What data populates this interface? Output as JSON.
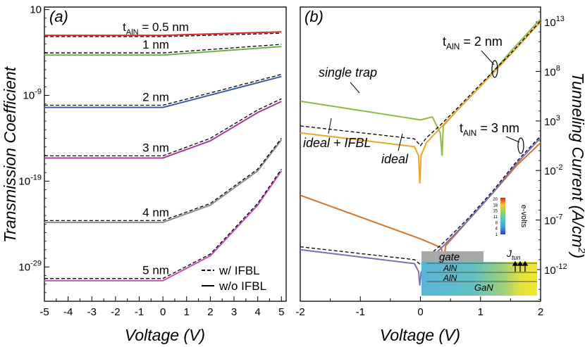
{
  "chart_data": [
    {
      "type": "line",
      "panel_label": "(a)",
      "xlabel": "Voltage (V)",
      "ylabel": "Transmission Coefficient",
      "xlim": [
        -5,
        5.2
      ],
      "ylim_log10": [
        -33,
        1.3
      ],
      "x_ticks": [
        "-5",
        "-4",
        "-3",
        "-2",
        "-1",
        "0",
        "1",
        "2",
        "3",
        "4",
        "5"
      ],
      "y_ticks": [
        {
          "base": "10",
          "exp": "",
          "log10": 1
        },
        {
          "base": "10",
          "exp": "-9",
          "log10": -9
        },
        {
          "base": "10",
          "exp": "-19",
          "log10": -19
        },
        {
          "base": "10",
          "exp": "-29",
          "log10": -29
        }
      ],
      "legend": {
        "placement": "bottom-right",
        "dashed": "w/ IFBL",
        "solid": "w/o IFBL"
      },
      "series": [
        {
          "label_main": "t",
          "label_sub": "AlN",
          "label_rest": " = 0.5 nm",
          "color": "#e8242a",
          "solid": [
            [
              -5,
              -2.0
            ],
            [
              0,
              -2.0
            ],
            [
              5,
              -1.6
            ]
          ],
          "dashed": [
            [
              -5,
              -2.15
            ],
            [
              0,
              -2.15
            ],
            [
              5,
              -1.75
            ]
          ]
        },
        {
          "label": "1 nm",
          "color": "#6ab446",
          "solid": [
            [
              -5,
              -4.3
            ],
            [
              0,
              -4.3
            ],
            [
              5,
              -3.3
            ]
          ],
          "dashed": [
            [
              -5,
              -4.05
            ],
            [
              0,
              -4.05
            ],
            [
              5,
              -3.05
            ]
          ]
        },
        {
          "label": "2 nm",
          "color": "#3b5ca8",
          "solid": [
            [
              -5,
              -10.4
            ],
            [
              0,
              -10.4
            ],
            [
              5,
              -6.8
            ]
          ],
          "dashed": [
            [
              -5,
              -10.15
            ],
            [
              0,
              -10.15
            ],
            [
              5,
              -6.55
            ]
          ]
        },
        {
          "label": "3 nm",
          "color": "#a23d97",
          "solid": [
            [
              -5,
              -16.3
            ],
            [
              0,
              -16.3
            ],
            [
              2,
              -14.3
            ],
            [
              4,
              -11.0
            ],
            [
              5,
              -9.7
            ]
          ],
          "dashed": [
            [
              -5,
              -16.05
            ],
            [
              0,
              -16.05
            ],
            [
              2,
              -14.0
            ],
            [
              4,
              -10.7
            ],
            [
              5,
              -9.4
            ]
          ]
        },
        {
          "label": "4 nm",
          "color": "#8c8c8c",
          "solid": [
            [
              -5,
              -23.8
            ],
            [
              0,
              -23.8
            ],
            [
              2,
              -21.8
            ],
            [
              4,
              -17.8
            ],
            [
              5,
              -14.2
            ]
          ],
          "dashed": [
            [
              -5,
              -23.6
            ],
            [
              0,
              -23.6
            ],
            [
              2,
              -21.6
            ],
            [
              4,
              -17.6
            ],
            [
              5,
              -14.0
            ]
          ]
        },
        {
          "label": "5 nm",
          "color": "#c74fb0",
          "solid": [
            [
              -5,
              -30.6
            ],
            [
              0,
              -30.6
            ],
            [
              2,
              -27.7
            ],
            [
              4,
              -21.8
            ],
            [
              5,
              -17.8
            ]
          ],
          "dashed": [
            [
              -5,
              -30.35
            ],
            [
              0,
              -30.35
            ],
            [
              2,
              -27.5
            ],
            [
              4,
              -21.6
            ],
            [
              5,
              -17.6
            ]
          ]
        }
      ]
    },
    {
      "type": "line",
      "panel_label": "(b)",
      "xlabel": "Voltage (V)",
      "ylabel": "Tunneling Current (A/cm2)",
      "ylabel_main": "Tunneling Current (A/cm",
      "ylabel_sup": "2",
      "ylabel_close": ")",
      "xlim": [
        -2,
        2
      ],
      "ylim_log10": [
        -15.2,
        14.5
      ],
      "x_ticks": [
        "-2",
        "-1",
        "0",
        "1",
        "2"
      ],
      "y_ticks": [
        {
          "base": "10",
          "exp": "13",
          "log10": 13
        },
        {
          "base": "10",
          "exp": "8",
          "log10": 8
        },
        {
          "base": "10",
          "exp": "3",
          "log10": 3
        },
        {
          "base": "10",
          "exp": "-2",
          "log10": -2
        },
        {
          "base": "10",
          "exp": "-7",
          "log10": -7
        },
        {
          "base": "10",
          "exp": "-12",
          "log10": -12
        }
      ],
      "annotations": [
        {
          "text_main": "t",
          "text_sub": "AlN",
          "text_rest": " = 2 nm"
        },
        {
          "text_main": "t",
          "text_sub": "AlN",
          "text_rest": " = 3 nm"
        },
        {
          "text": "single trap"
        },
        {
          "text": "ideal + IFBL"
        },
        {
          "text": "ideal"
        }
      ],
      "series": [
        {
          "name": "single trap",
          "group": "2 nm",
          "color": "#8fbb44",
          "style": "solid",
          "points": [
            [
              -2,
              5.0
            ],
            [
              0,
              3.1
            ],
            [
              0.2,
              3.4
            ],
            [
              0.33,
              1.8
            ],
            [
              0.36,
              -0.5
            ],
            [
              0.38,
              2.5
            ],
            [
              0.6,
              4.0
            ],
            [
              1.0,
              6.5
            ],
            [
              1.5,
              10.0
            ],
            [
              2,
              13.3
            ]
          ]
        },
        {
          "name": "ideal",
          "group": "2 nm",
          "color": "#eea328",
          "style": "solid",
          "points": [
            [
              -2,
              1.8
            ],
            [
              -0.1,
              0.4
            ],
            [
              -0.03,
              -0.5
            ],
            [
              -0.01,
              -3.3
            ],
            [
              0.01,
              -0.5
            ],
            [
              0.1,
              0.8
            ],
            [
              0.3,
              2.1
            ],
            [
              0.6,
              4.0
            ],
            [
              1.0,
              6.5
            ],
            [
              1.5,
              9.7
            ],
            [
              2,
              13.0
            ]
          ]
        },
        {
          "name": "ideal + IFBL",
          "group": "2 nm",
          "color": "#000000",
          "style": "dashed",
          "points": [
            [
              -2,
              2.5
            ],
            [
              -0.1,
              1.2
            ],
            [
              0.0,
              0.5
            ],
            [
              0.1,
              1.3
            ],
            [
              0.3,
              2.4
            ],
            [
              0.6,
              4.2
            ],
            [
              1.0,
              6.7
            ],
            [
              1.5,
              9.8
            ],
            [
              2,
              13.1
            ]
          ]
        },
        {
          "name": "single trap",
          "group": "3 nm",
          "color": "#d2742a",
          "style": "solid",
          "points": [
            [
              -2,
              -4.5
            ],
            [
              0,
              -8.9
            ],
            [
              0.2,
              -9.4
            ],
            [
              0.35,
              -9.8
            ],
            [
              0.38,
              -11.4
            ],
            [
              0.42,
              -9.6
            ],
            [
              0.8,
              -7.0
            ],
            [
              1.2,
              -4.3
            ],
            [
              1.6,
              -1.5
            ],
            [
              2,
              0.8
            ]
          ]
        },
        {
          "name": "ideal",
          "group": "3 nm",
          "color": "#7b6fba",
          "style": "solid",
          "points": [
            [
              -2,
              -10.0
            ],
            [
              -0.1,
              -11.4
            ],
            [
              -0.03,
              -12.2
            ],
            [
              -0.01,
              -13.6
            ],
            [
              0.01,
              -12.3
            ],
            [
              0.1,
              -11.3
            ],
            [
              0.4,
              -9.5
            ],
            [
              0.8,
              -7.0
            ],
            [
              1.2,
              -4.3
            ],
            [
              1.6,
              -1.3
            ],
            [
              2,
              1.3
            ]
          ]
        },
        {
          "name": "ideal + IFBL",
          "group": "3 nm",
          "color": "#000000",
          "style": "dashed",
          "points": [
            [
              -2,
              -9.7
            ],
            [
              -0.1,
              -11.0
            ],
            [
              0.0,
              -11.5
            ],
            [
              0.1,
              -10.8
            ],
            [
              0.4,
              -9.2
            ],
            [
              0.8,
              -6.8
            ],
            [
              1.2,
              -4.1
            ],
            [
              1.6,
              -1.1
            ],
            [
              2,
              1.5
            ]
          ]
        }
      ],
      "inset": {
        "labels": {
          "gate": "gate",
          "aln_top": "AlN",
          "aln_bottom": "AlN",
          "gan": "GaN",
          "j_main": "J",
          "j_sub": "tun"
        },
        "colorbar": {
          "title": "e-volts",
          "ticks": [
            "20",
            "18",
            "15",
            "11",
            "8",
            "4",
            "1"
          ]
        }
      }
    }
  ]
}
